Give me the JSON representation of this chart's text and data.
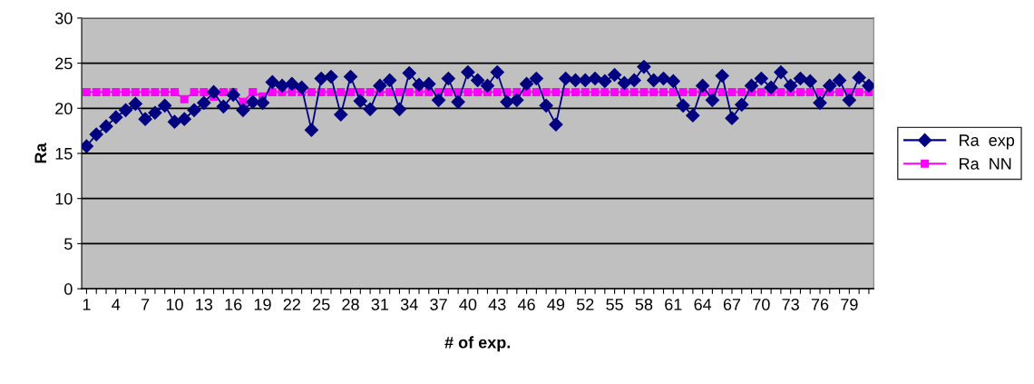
{
  "chart_data": {
    "type": "line",
    "xlabel": "# of exp.",
    "ylabel": "Ra",
    "categories": [
      "1",
      null,
      null,
      "4",
      null,
      null,
      "7",
      null,
      null,
      "10",
      null,
      null,
      "13",
      null,
      null,
      "16",
      null,
      null,
      "19",
      null,
      null,
      "22",
      null,
      null,
      "25",
      null,
      null,
      "28",
      null,
      null,
      "31",
      null,
      null,
      "34",
      null,
      null,
      "37",
      null,
      null,
      "40",
      null,
      null,
      "43",
      null,
      null,
      "46",
      null,
      null,
      "49",
      null,
      null,
      "52",
      null,
      null,
      "55",
      null,
      null,
      "58",
      null,
      null,
      "61",
      null,
      null,
      "64",
      null,
      null,
      "67",
      null,
      null,
      "70",
      null,
      null,
      "73",
      null,
      null,
      "76",
      null,
      null,
      "79",
      null,
      null
    ],
    "series": [
      {
        "name": "Ra  exp",
        "color": "#000080",
        "marker": "diamond",
        "values": [
          15.8,
          17.1,
          18.0,
          19.0,
          19.8,
          20.5,
          18.8,
          19.5,
          20.3,
          18.5,
          18.8,
          19.8,
          20.6,
          21.8,
          20.2,
          21.5,
          19.8,
          20.7,
          20.6,
          22.9,
          22.5,
          22.7,
          22.3,
          17.6,
          23.3,
          23.5,
          19.3,
          23.5,
          20.8,
          19.9,
          22.5,
          23.1,
          19.9,
          23.9,
          22.6,
          22.7,
          20.9,
          23.3,
          20.7,
          24.0,
          23.1,
          22.5,
          24.0,
          20.7,
          20.9,
          22.7,
          23.3,
          20.3,
          18.2,
          23.3,
          23.1,
          23.1,
          23.3,
          23.0,
          23.7,
          22.8,
          23.1,
          24.6,
          23.1,
          23.3,
          23.0,
          20.3,
          19.2,
          22.5,
          20.9,
          23.6,
          18.9,
          20.4,
          22.5,
          23.3,
          22.3,
          24.0,
          22.5,
          23.3,
          23.0,
          20.6,
          22.5,
          23.1,
          20.9,
          23.4,
          22.5
        ]
      },
      {
        "name": "Ra  NN",
        "color": "#ff00ff",
        "marker": "square",
        "values": [
          21.8,
          21.8,
          21.8,
          21.8,
          21.8,
          21.8,
          21.8,
          21.8,
          21.8,
          21.8,
          21.0,
          21.8,
          21.8,
          21.3,
          21.8,
          21.8,
          20.7,
          21.8,
          21.3,
          21.8,
          21.8,
          21.8,
          21.8,
          21.8,
          21.8,
          21.8,
          21.8,
          21.8,
          21.8,
          21.8,
          21.8,
          21.8,
          21.8,
          21.8,
          21.8,
          21.8,
          21.8,
          21.8,
          21.8,
          21.8,
          21.8,
          21.8,
          21.8,
          21.8,
          21.8,
          21.8,
          21.8,
          21.8,
          21.8,
          21.8,
          21.8,
          21.8,
          21.8,
          21.8,
          21.8,
          21.8,
          21.8,
          21.8,
          21.8,
          21.8,
          21.8,
          21.8,
          21.8,
          21.8,
          21.8,
          21.8,
          21.8,
          21.8,
          21.8,
          21.8,
          21.8,
          21.8,
          21.8,
          21.8,
          21.8,
          21.8,
          21.8,
          21.8,
          21.8,
          21.8,
          21.8
        ]
      }
    ],
    "ylim": [
      0,
      30
    ],
    "yticks": [
      0,
      5,
      10,
      15,
      20,
      25,
      30
    ],
    "grid": "y",
    "legend": "right",
    "line_style": "solid"
  }
}
